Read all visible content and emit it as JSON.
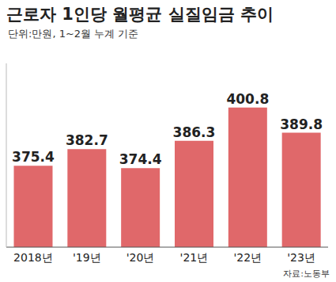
{
  "chart_data": {
    "type": "bar",
    "title": "근로자 1인당 월평균 실질임금 추이",
    "subtitle": "단위:만원, 1~2월 누계 기준",
    "source": "자료:노동부",
    "categories": [
      "2018년",
      "'19년",
      "'20년",
      "'21년",
      "'22년",
      "'23년"
    ],
    "values": [
      375.4,
      382.7,
      374.4,
      386.3,
      400.8,
      389.8
    ],
    "color": "#e0686a",
    "ylim": [
      340,
      420
    ],
    "data_labels": true,
    "tick_labels": "x",
    "grid": false
  }
}
